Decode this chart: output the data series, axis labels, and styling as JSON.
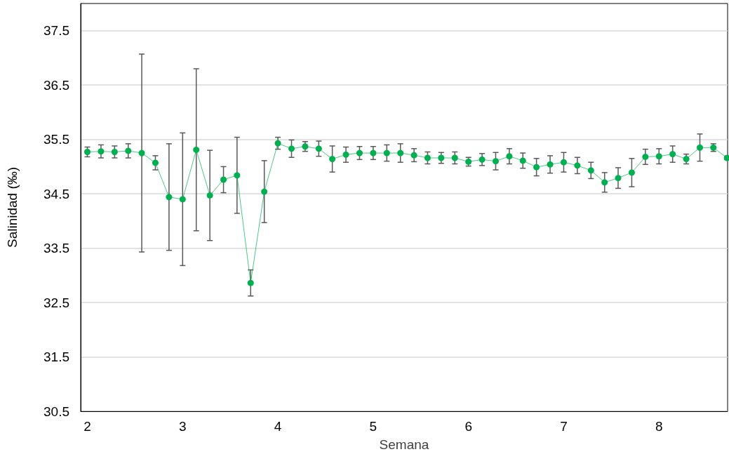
{
  "chart_data": {
    "type": "line",
    "xlabel": "Semana",
    "ylabel": "Salinidad (‰)",
    "x": [
      2,
      2.143,
      2.286,
      2.429,
      2.571,
      2.714,
      2.857,
      3,
      3.143,
      3.286,
      3.429,
      3.571,
      3.714,
      3.857,
      4,
      4.143,
      4.286,
      4.429,
      4.571,
      4.714,
      4.857,
      5,
      5.143,
      5.286,
      5.429,
      5.571,
      5.714,
      5.857,
      6,
      6.143,
      6.286,
      6.429,
      6.571,
      6.714,
      6.857,
      7,
      7.143,
      7.286,
      7.429,
      7.571,
      7.714,
      7.857,
      8,
      8.143,
      8.286,
      8.429,
      8.571,
      8.714
    ],
    "series": [
      {
        "color": "#00b050",
        "values": [
          35.27,
          35.28,
          35.27,
          35.29,
          35.25,
          35.07,
          34.44,
          34.4,
          35.31,
          34.47,
          34.76,
          34.84,
          32.86,
          34.54,
          35.43,
          35.33,
          35.37,
          35.33,
          35.14,
          35.22,
          35.25,
          35.25,
          35.25,
          35.25,
          35.21,
          35.16,
          35.16,
          35.16,
          35.09,
          35.13,
          35.1,
          35.19,
          35.11,
          34.99,
          35.04,
          35.08,
          35.02,
          34.93,
          34.71,
          34.79,
          34.89,
          35.18,
          35.19,
          35.23,
          35.14,
          35.35,
          35.35,
          35.16
        ],
        "errors": [
          0.09,
          0.12,
          0.11,
          0.13,
          1.82,
          0.13,
          0.98,
          1.22,
          1.49,
          0.83,
          0.24,
          0.7,
          0.24,
          0.57,
          0.11,
          0.16,
          0.09,
          0.14,
          0.24,
          0.14,
          0.12,
          0.12,
          0.15,
          0.17,
          0.12,
          0.11,
          0.1,
          0.11,
          0.08,
          0.11,
          0.16,
          0.14,
          0.14,
          0.16,
          0.16,
          0.18,
          0.15,
          0.15,
          0.18,
          0.19,
          0.26,
          0.14,
          0.14,
          0.15,
          0.09,
          0.25,
          0.07,
          0.03
        ]
      }
    ],
    "xlim": [
      1.93,
      8.72
    ],
    "xticks": [
      2,
      3,
      4,
      5,
      6,
      7,
      8
    ],
    "ylim": [
      30.5,
      38.0
    ],
    "yticks": [
      30.5,
      31.5,
      32.5,
      33.5,
      34.5,
      35.5,
      36.5,
      37.5
    ],
    "grid": "y",
    "marker": "circle",
    "line_style": "solid"
  }
}
